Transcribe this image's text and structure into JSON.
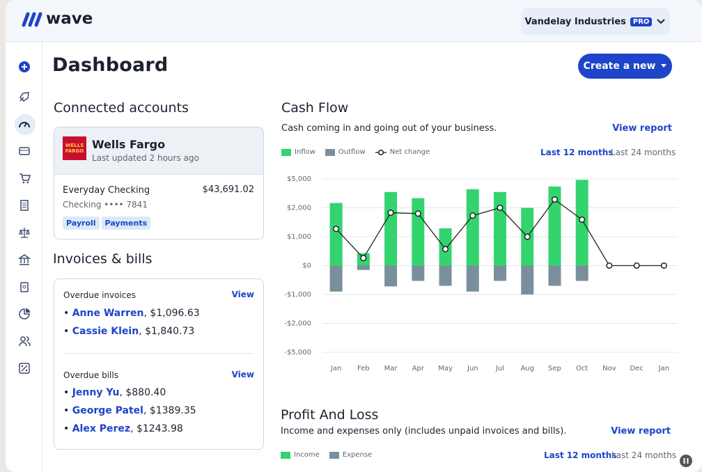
{
  "header": {
    "logo": "wave",
    "company": "Vandelay Industries",
    "badge": "PRO"
  },
  "page_title": "Dashboard",
  "create_button": "Create a new",
  "connected_accounts": {
    "title": "Connected accounts",
    "bank": "Wells Fargo",
    "bank_logo": "WELLS FARGO",
    "updated": "Last updated 2 hours ago",
    "account": "Everyday Checking",
    "balance": "$43,691.02",
    "account_number": "Checking •••• 7841",
    "tags": [
      "Payroll",
      "Payments"
    ]
  },
  "invoices_bills": {
    "title": "Invoices & bills",
    "groups": [
      {
        "title": "Overdue invoices",
        "action": "View",
        "items": [
          {
            "name": "Anne Warren",
            "amount": ", $1,096.63"
          },
          {
            "name": "Cassie Klein",
            "amount": ", $1,840.73"
          }
        ]
      },
      {
        "title": "Overdue bills",
        "action": "View",
        "items": [
          {
            "name": "Jenny Yu",
            "amount": ", $880.40"
          },
          {
            "name": "George Patel",
            "amount": ", $1389.35"
          },
          {
            "name": "Alex Perez",
            "amount": ", $1243.98"
          }
        ]
      }
    ]
  },
  "chart_data": {
    "type": "bar",
    "title": "Cash Flow",
    "subtitle": "Cash coming in and going out of your business.",
    "action": "View report",
    "periods": [
      "Last 12 months",
      "Last 24 months"
    ],
    "categories": [
      "Jan",
      "Feb",
      "Mar",
      "Apr",
      "May",
      "Jun",
      "Jul",
      "Aug",
      "Sep",
      "Oct",
      "Nov",
      "Dec",
      "Jan"
    ],
    "series": [
      {
        "name": "Inflow",
        "type": "bar",
        "color": "#33d46e",
        "values": [
          2500,
          430,
          3640,
          3000,
          1290,
          3930,
          3640,
          2000,
          4210,
          4900,
          null,
          null,
          null
        ]
      },
      {
        "name": "Outflow",
        "type": "bar",
        "color": "#7a8f9c",
        "values": [
          -900,
          -150,
          -720,
          -530,
          -700,
          -900,
          -530,
          -1000,
          -700,
          -530,
          null,
          null,
          null
        ]
      },
      {
        "name": "Net change",
        "type": "line",
        "color": "#222222",
        "values": [
          1270,
          260,
          1830,
          1800,
          570,
          1730,
          2000,
          1000,
          2860,
          1590,
          0,
          0,
          0
        ]
      }
    ],
    "ylim": [
      -5000,
      5000
    ],
    "yticks": [
      {
        "value": -5000,
        "label": "-$5,000"
      },
      {
        "value": -2000,
        "label": "-$2,000"
      },
      {
        "value": -1000,
        "label": "-$1,000"
      },
      {
        "value": 0,
        "label": "$0"
      },
      {
        "value": 1000,
        "label": "$1,000"
      },
      {
        "value": 2000,
        "label": "$2,000"
      },
      {
        "value": 5000,
        "label": "$5,000"
      }
    ],
    "grid": true
  },
  "profit_loss": {
    "title": "Profit And Loss",
    "subtitle": "Income and expenses only (includes unpaid invoices and bills).",
    "action": "View report",
    "periods": [
      "Last 12 months",
      "Last 24 months"
    ],
    "legend": [
      {
        "name": "Income",
        "color": "#33d46e"
      },
      {
        "name": "Expense",
        "color": "#7a8f9c"
      }
    ]
  }
}
